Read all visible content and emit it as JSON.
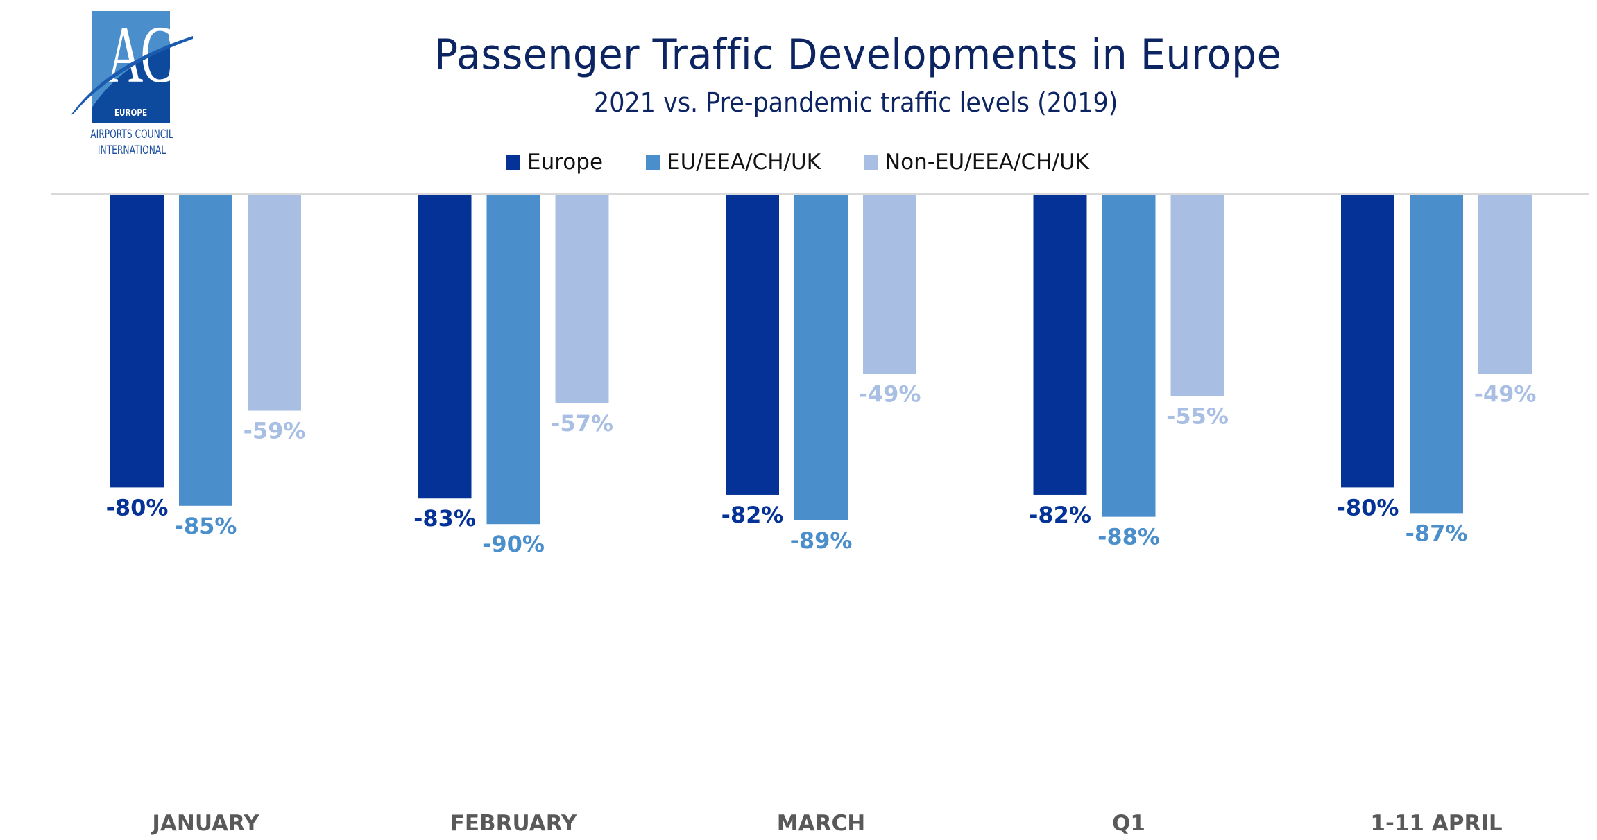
{
  "logo": {
    "mark": "ACI",
    "region": "EUROPE",
    "org_line1": "AIRPORTS COUNCIL",
    "org_line2": "INTERNATIONAL"
  },
  "chart_data": {
    "type": "bar",
    "orientation": "vertical-downward",
    "title": "Passenger Traffic Developments in Europe",
    "subtitle": "2021 vs. Pre-pandemic traffic levels (2019)",
    "xlabel": "",
    "ylabel": "",
    "unit": "%",
    "ylim": [
      -100,
      0
    ],
    "grid": false,
    "legend_position": "top-center",
    "categories": [
      "JANUARY",
      "FEBRUARY",
      "MARCH",
      "Q1",
      "1-11 APRIL"
    ],
    "series": [
      {
        "name": "Europe",
        "color": "#053296",
        "values": [
          -80,
          -83,
          -82,
          -82,
          -80
        ],
        "labels": [
          "-80%",
          "-83%",
          "-82%",
          "-82%",
          "-80%"
        ]
      },
      {
        "name": "EU/EEA/CH/UK",
        "color": "#4a8fcb",
        "values": [
          -85,
          -90,
          -89,
          -88,
          -87
        ],
        "labels": [
          "-85%",
          "-90%",
          "-89%",
          "-88%",
          "-87%"
        ]
      },
      {
        "name": "Non-EU/EEA/CH/UK",
        "color": "#a8bfe3",
        "values": [
          -59,
          -57,
          -49,
          -55,
          -49
        ],
        "labels": [
          "-59%",
          "-57%",
          "-49%",
          "-55%",
          "-49%"
        ]
      }
    ],
    "axis_color": "#d9d9d9",
    "category_label_color": "#595959"
  }
}
